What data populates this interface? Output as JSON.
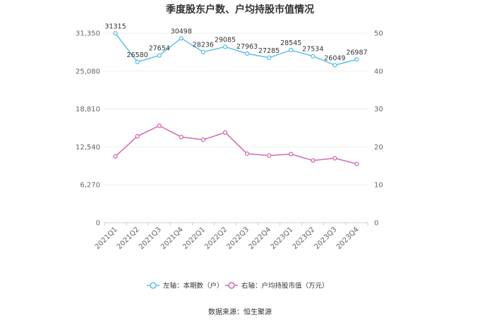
{
  "chart_data": {
    "type": "line",
    "title": "季度股东户数、户均持股市值情况",
    "categories": [
      "2021Q1",
      "2021Q2",
      "2021Q3",
      "2021Q4",
      "2022Q1",
      "2022Q2",
      "2022Q3",
      "2022Q4",
      "2023Q1",
      "2023Q2",
      "2023Q3",
      "2023Q4"
    ],
    "left_axis": {
      "ylim": [
        0,
        31350
      ],
      "ticks": [
        "0",
        "6,270",
        "12,540",
        "18,810",
        "25,080",
        "31,350"
      ]
    },
    "right_axis": {
      "ylim": [
        0,
        50
      ],
      "ticks": [
        "0",
        "10",
        "20",
        "30",
        "40",
        "50"
      ]
    },
    "series": [
      {
        "name": "左轴：本期数（户）",
        "axis": "left",
        "color": "#5bc0eb",
        "values": [
          31315,
          26580,
          27654,
          30498,
          28236,
          29085,
          27963,
          27285,
          28545,
          27534,
          26049,
          26987
        ],
        "labels": [
          "31315",
          "26580",
          "27654",
          "30498",
          "28236",
          "29085",
          "27963",
          "27285",
          "28545",
          "27534",
          "26049",
          "26987"
        ]
      },
      {
        "name": "右轴：户均持股市值（万元）",
        "axis": "right",
        "color": "#d36ab2",
        "values": [
          17.5,
          22.8,
          25.6,
          22.6,
          21.9,
          23.8,
          18.2,
          17.7,
          18.1,
          16.4,
          17.0,
          15.5
        ]
      }
    ],
    "grid": true,
    "legend": "bottom"
  },
  "footer": {
    "source": "数据来源：恒生聚源"
  }
}
